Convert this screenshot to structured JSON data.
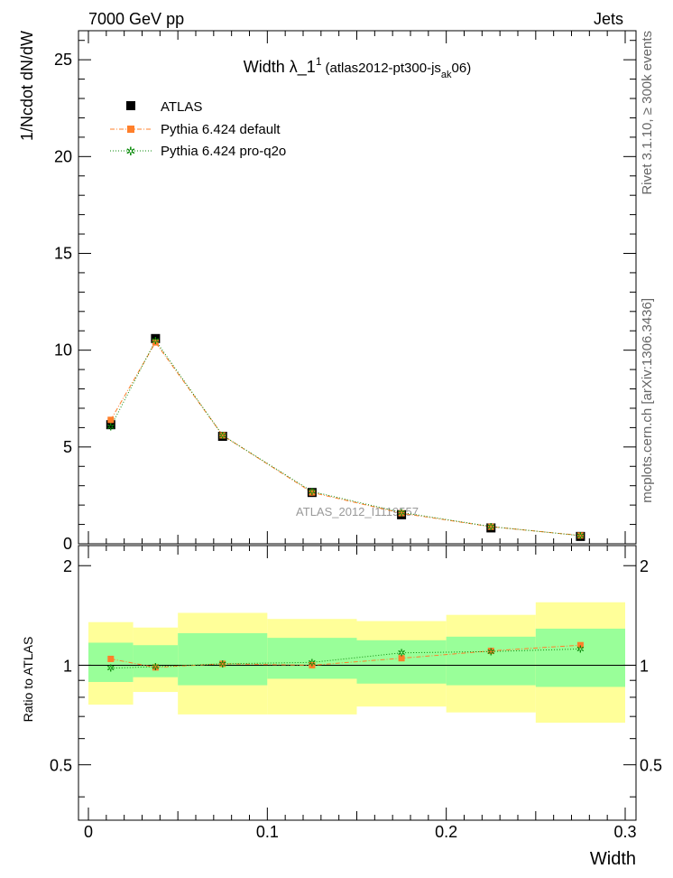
{
  "header": {
    "left": "7000 GeV pp",
    "right": "Jets"
  },
  "side_text": {
    "rivet": "Rivet 3.1.10, ≥ 300k events",
    "mcplots": "mcplots.cern.ch [arXiv:1306.3436]"
  },
  "watermark": "ATLAS_2012_I1119557",
  "colors": {
    "atlas": "#000000",
    "default": "#ff7f2a",
    "proq2o": "#0a8a0a",
    "band_inner": "#99ff99",
    "band_outer": "#ffff99"
  },
  "chart_data": [
    {
      "type": "scatter",
      "title": "Width λ_1",
      "title_sup": "1",
      "title_paren": "(atlas2012-pt300-js",
      "title_sub": "ak",
      "title_end": "06)",
      "ylabel": "1/Ncdot dN/dW",
      "xlim": [
        0,
        0.3
      ],
      "ylim": [
        0,
        26.5
      ],
      "yticks": [
        0,
        5,
        10,
        15,
        20,
        25
      ],
      "x": [
        0.0125,
        0.0375,
        0.075,
        0.125,
        0.175,
        0.225,
        0.275
      ],
      "series": [
        {
          "name": "ATLAS",
          "values": [
            6.15,
            10.6,
            5.55,
            2.65,
            1.5,
            0.82,
            0.38
          ]
        },
        {
          "name": "Pythia 6.424 default",
          "values": [
            6.4,
            10.4,
            5.6,
            2.65,
            1.58,
            0.88,
            0.43
          ]
        },
        {
          "name": "Pythia 6.424 pro-q2o",
          "values": [
            6.05,
            10.5,
            5.6,
            2.7,
            1.62,
            0.89,
            0.42
          ]
        }
      ],
      "legend": [
        "ATLAS",
        "Pythia 6.424 default",
        "Pythia 6.424 pro-q2o"
      ]
    },
    {
      "type": "scatter",
      "ylabel": "Ratio to ATLAS",
      "xlabel": "Width",
      "xlim": [
        0,
        0.3
      ],
      "xticks": [
        0,
        0.1,
        0.2,
        0.3
      ],
      "xticklabels": [
        "0",
        "0.1",
        "0.2",
        "0.3"
      ],
      "ylim": [
        0.34,
        2.3
      ],
      "yticks": [
        0.5,
        1,
        2
      ],
      "yticklabels": [
        "0.5",
        "1",
        "2"
      ],
      "bin_edges": [
        0,
        0.025,
        0.05,
        0.1,
        0.15,
        0.2,
        0.25,
        0.3
      ],
      "band_inner": [
        [
          0.89,
          1.17
        ],
        [
          0.92,
          1.15
        ],
        [
          0.87,
          1.25
        ],
        [
          0.91,
          1.21
        ],
        [
          0.88,
          1.19
        ],
        [
          0.87,
          1.22
        ],
        [
          0.86,
          1.29
        ]
      ],
      "band_outer": [
        [
          0.76,
          1.35
        ],
        [
          0.83,
          1.3
        ],
        [
          0.71,
          1.44
        ],
        [
          0.71,
          1.38
        ],
        [
          0.75,
          1.36
        ],
        [
          0.72,
          1.42
        ],
        [
          0.67,
          1.55
        ]
      ],
      "x": [
        0.0125,
        0.0375,
        0.075,
        0.125,
        0.175,
        0.225,
        0.275
      ],
      "series": [
        {
          "name": "Pythia 6.424 default",
          "values": [
            1.045,
            0.985,
            1.01,
            1.0,
            1.05,
            1.105,
            1.15
          ]
        },
        {
          "name": "Pythia 6.424 pro-q2o",
          "values": [
            0.98,
            0.99,
            1.01,
            1.02,
            1.09,
            1.1,
            1.12
          ]
        }
      ]
    }
  ]
}
